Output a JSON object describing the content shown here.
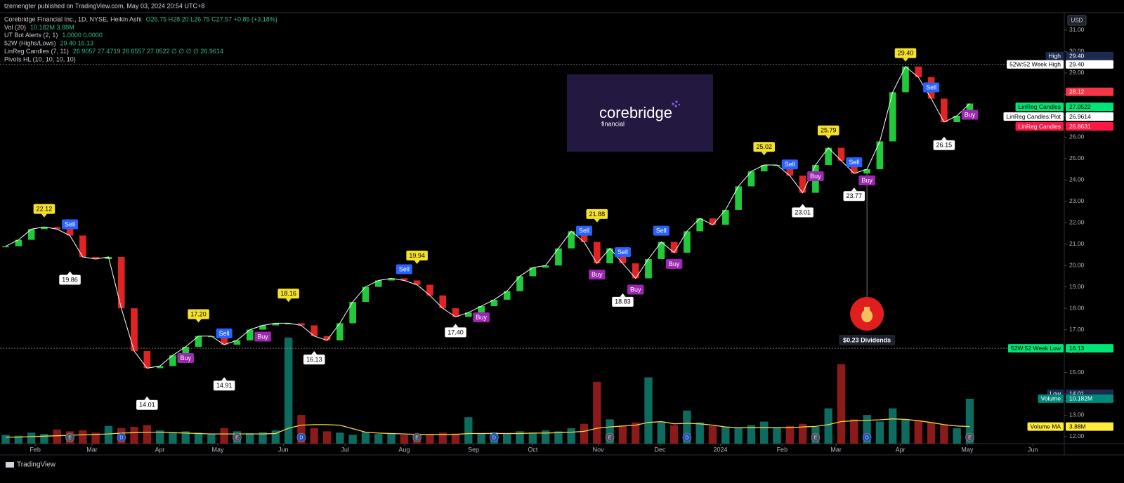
{
  "header": {
    "publisher": "tzemengter published on TradingView.com, May 03, 2024 20:54 UTC+8",
    "currency": "USD",
    "brand": "TradingView"
  },
  "legend": [
    {
      "name": "Corebridge Financial Inc., 1D, NYSE, Heikin Ashi",
      "values": "O26.75 H28.20 L26.75 C27.57 +0.85 (+3.18%)"
    },
    {
      "name": "Vol (20)",
      "values": "10.182M 3.88M"
    },
    {
      "name": "UT Bot Alerts (2, 1)",
      "values": "1.0000 0.0000"
    },
    {
      "name": "52W (Highs/Lows)",
      "values": "29.40 16.13"
    },
    {
      "name": "LinReg Candles (7, 11)",
      "values": "26.9057 27.4719 26.6557 27.0522 ∅ ∅ ∅ ∅ 26.9614"
    },
    {
      "name": "Pivots HL (10, 10, 10, 10)"
    }
  ],
  "logo": {
    "name": "corebridge",
    "sub": "financial"
  },
  "chart_data": {
    "type": "candlestick",
    "up_color": "#22c93a",
    "down_color": "#e02424",
    "line_color": "#ffffff",
    "values": [
      20.9,
      21.2,
      21.7,
      21.8,
      21.7,
      21.4,
      20.4,
      20.3,
      20.4,
      18.0,
      16.0,
      15.2,
      15.3,
      15.8,
      16.2,
      16.7,
      16.7,
      16.3,
      16.5,
      17.0,
      17.2,
      17.3,
      17.3,
      17.2,
      16.7,
      16.5,
      17.3,
      18.3,
      19.0,
      19.3,
      19.4,
      19.3,
      19.1,
      18.6,
      18.0,
      17.6,
      17.8,
      18.1,
      18.4,
      18.8,
      19.5,
      19.9,
      20.0,
      20.8,
      21.6,
      21.1,
      20.1,
      20.8,
      20.1,
      19.4,
      20.3,
      21.1,
      20.6,
      21.6,
      22.2,
      21.9,
      22.6,
      23.7,
      24.4,
      24.7,
      24.7,
      24.2,
      23.4,
      24.7,
      25.5,
      24.9,
      24.3,
      24.5,
      25.8,
      28.1,
      29.3,
      28.8,
      27.8,
      26.7,
      27.0,
      27.57
    ],
    "volume": [
      2.0,
      1.8,
      2.5,
      2.2,
      3.2,
      2.8,
      3.0,
      2.5,
      4.0,
      3.5,
      3.8,
      4.2,
      3.0,
      2.6,
      2.8,
      2.5,
      2.2,
      3.5,
      2.8,
      2.4,
      2.6,
      3.0,
      24.0,
      6.5,
      3.5,
      2.8,
      2.5,
      2.0,
      2.6,
      2.2,
      2.4,
      2.0,
      1.9,
      2.2,
      2.5,
      2.3,
      6.0,
      2.4,
      2.6,
      2.2,
      2.8,
      2.5,
      3.0,
      2.8,
      3.5,
      4.5,
      14.0,
      5.5,
      4.0,
      4.8,
      15.0,
      5.0,
      4.2,
      7.5,
      4.8,
      4.0,
      3.8,
      3.5,
      4.2,
      5.0,
      3.6,
      4.0,
      4.5,
      3.8,
      8.0,
      18.0,
      5.5,
      6.5,
      5.0,
      8.0,
      5.5,
      5.2,
      4.8,
      4.2,
      3.5,
      10.182
    ],
    "volume_ma": [
      1.5,
      1.5,
      1.6,
      1.7,
      1.8,
      1.9,
      2.0,
      2.1,
      2.2,
      2.4,
      2.5,
      2.6,
      2.6,
      2.5,
      2.4,
      2.3,
      2.2,
      2.2,
      2.2,
      2.2,
      2.2,
      2.3,
      3.5,
      4.2,
      4.3,
      4.3,
      4.2,
      3.4,
      2.6,
      2.4,
      2.3,
      2.2,
      2.1,
      2.1,
      2.1,
      2.1,
      2.3,
      2.3,
      2.3,
      2.3,
      2.3,
      2.4,
      2.4,
      2.5,
      2.6,
      2.8,
      3.5,
      3.8,
      4.0,
      4.2,
      4.8,
      5.0,
      4.5,
      4.6,
      4.5,
      4.2,
      3.8,
      3.6,
      3.6,
      3.6,
      3.6,
      3.6,
      3.8,
      3.9,
      4.3,
      5.0,
      5.2,
      5.3,
      5.4,
      5.6,
      5.5,
      5.2,
      4.8,
      4.3,
      4.0,
      3.88
    ],
    "volume_up_color": "#0e6b5f",
    "volume_down_color": "#8b1a1a",
    "volume_ma_color": "#f5d742",
    "xlim": [
      -0.44,
      82.35
    ],
    "xticks": [
      {
        "value": 2.3,
        "label": "Feb"
      },
      {
        "value": 6.72,
        "label": "Mar"
      },
      {
        "value": 12.0,
        "label": "Apr"
      },
      {
        "value": 16.5,
        "label": "May"
      },
      {
        "value": 21.6,
        "label": "Jun"
      },
      {
        "value": 26.4,
        "label": "Jul"
      },
      {
        "value": 31.0,
        "label": "Aug"
      },
      {
        "value": 36.4,
        "label": "Sep"
      },
      {
        "value": 41.0,
        "label": "Oct"
      },
      {
        "value": 46.1,
        "label": "Nov"
      },
      {
        "value": 50.9,
        "label": "Dec"
      },
      {
        "value": 55.6,
        "label": "2024"
      },
      {
        "value": 60.4,
        "label": "Feb"
      },
      {
        "value": 64.6,
        "label": "Mar"
      },
      {
        "value": 69.6,
        "label": "Apr"
      },
      {
        "value": 74.8,
        "label": "May"
      },
      {
        "value": 79.9,
        "label": "Jun"
      }
    ],
    "ylim": [
      11.67,
      31.82
    ],
    "yticks": [
      {
        "value": 12,
        "label": "12.00"
      },
      {
        "value": 13,
        "label": "13.00"
      },
      {
        "value": 14,
        "label": "14.00"
      },
      {
        "value": 15,
        "label": "15.00"
      },
      {
        "value": 16,
        "label": "16.00"
      },
      {
        "value": 17,
        "label": "17.00"
      },
      {
        "value": 18,
        "label": "18.00"
      },
      {
        "value": 19,
        "label": "19.00"
      },
      {
        "value": 20,
        "label": "20.00"
      },
      {
        "value": 21,
        "label": "21.00"
      },
      {
        "value": 22,
        "label": "22.00"
      },
      {
        "value": 23,
        "label": "23.00"
      },
      {
        "value": 24,
        "label": "24.00"
      },
      {
        "value": 25,
        "label": "25.00"
      },
      {
        "value": 26,
        "label": "26.00"
      },
      {
        "value": 27,
        "label": "27.00"
      },
      {
        "value": 28,
        "label": "28.00"
      },
      {
        "value": 29,
        "label": "29.00"
      },
      {
        "value": 30,
        "label": "30.00"
      },
      {
        "value": 31,
        "label": "31.00"
      }
    ],
    "y2lim": [
      0,
      97.5
    ],
    "pivot_highs": {
      "color": "#f5e12c",
      "x": [
        3,
        15,
        22,
        32,
        46,
        59,
        64,
        70
      ],
      "values": [
        22.12,
        {
          "value": 17.2,
          "label": "17.20"
        },
        18.16,
        19.94,
        21.88,
        25.02,
        25.79,
        {
          "value": 29.4,
          "label": "29.40"
        }
      ]
    },
    "pivot_lows": {
      "color": "#ffffff",
      "x": [
        5,
        11,
        17,
        24,
        35,
        48,
        62,
        66,
        73
      ],
      "values": [
        19.86,
        14.01,
        14.91,
        16.13,
        {
          "value": 17.4,
          "label": "17.40"
        },
        18.83,
        23.01,
        23.77,
        26.15
      ]
    },
    "signals": {
      "sell": {
        "label": "Sell",
        "color": "#2962ff",
        "x": [
          5,
          17,
          31,
          45,
          48,
          51,
          61,
          66,
          72
        ]
      },
      "buy": {
        "label": "Buy",
        "color": "#9c27b0",
        "x": [
          14,
          20,
          37,
          46,
          49,
          52,
          63,
          67,
          75
        ]
      }
    },
    "events": {
      "earnings": {
        "label": "E",
        "color": "#4a4f5c",
        "x": [
          5,
          18,
          32,
          47,
          63,
          75
        ]
      },
      "dividends": {
        "label": "D",
        "color": "#1e4fb8",
        "x": [
          9,
          23,
          38,
          53,
          67
        ]
      }
    },
    "dividend": {
      "x": 67,
      "label": "$0.23 Dividends",
      "color": "#e01e1e"
    },
    "price_labels": [
      {
        "name": "High",
        "value": {
          "value": 29.4,
          "label": "29.40"
        },
        "color": "#1b2a4e"
      },
      {
        "name": "52W:52 Week High",
        "value": {
          "value": 29.4,
          "label": "29.40"
        },
        "color": "#ffffff",
        "line": true
      },
      {
        "value": 28.12,
        "color": "#f23645"
      },
      {
        "name": "LinReg Candles",
        "value": 27.0522,
        "color": "#00e676"
      },
      {
        "name": "LinReg Candles:Plot",
        "value": 26.9614,
        "color": "#ffffff"
      },
      {
        "name": "LinReg Candles",
        "value": 26.8631,
        "color": "#ff1744"
      },
      {
        "name": "52W:52 Week Low",
        "value": 16.13,
        "color": "#00e676",
        "line": true
      },
      {
        "name": "Low",
        "value": 14.01,
        "color": "#1b2a4e"
      },
      {
        "name": "Volume",
        "value": {
          "value": 10.182,
          "label": "10.182M"
        },
        "color": "#00897b",
        "axis": "y2"
      },
      {
        "name": "Volume MA",
        "value": {
          "value": 3.88,
          "label": "3.88M"
        },
        "color": "#ffeb3b",
        "axis": "y2"
      }
    ]
  }
}
